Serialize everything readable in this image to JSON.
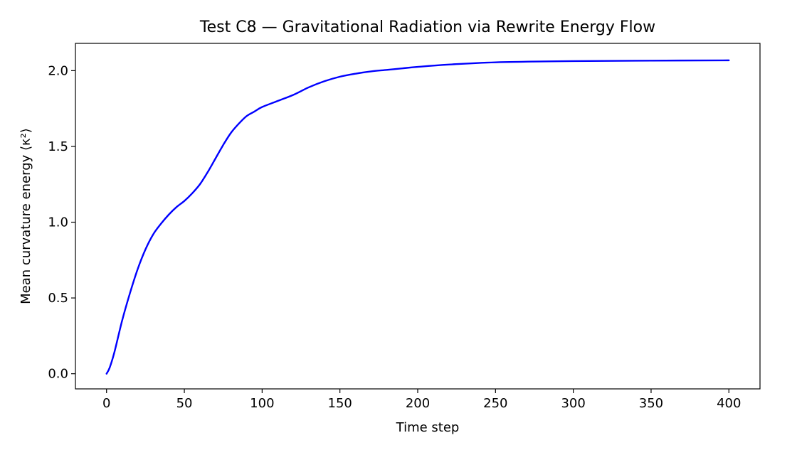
{
  "chart_data": {
    "type": "line",
    "title": "Test C8 — Gravitational Radiation via Rewrite Energy Flow",
    "xlabel": "Time step",
    "ylabel": "Mean curvature energy ⟨κ²⟩",
    "xlim": [
      -20,
      420
    ],
    "ylim": [
      -0.1,
      2.18
    ],
    "xticks": [
      0,
      50,
      100,
      150,
      200,
      250,
      300,
      350,
      400
    ],
    "xtick_labels": [
      "0",
      "50",
      "100",
      "150",
      "200",
      "250",
      "300",
      "350",
      "400"
    ],
    "yticks": [
      0.0,
      0.5,
      1.0,
      1.5,
      2.0
    ],
    "ytick_labels": [
      "0.0",
      "0.5",
      "1.0",
      "1.5",
      "2.0"
    ],
    "grid": false,
    "legend": "none",
    "series": [
      {
        "color": "#0000ff",
        "x": [
          0,
          2,
          5,
          10,
          15,
          20,
          25,
          30,
          35,
          40,
          45,
          50,
          55,
          60,
          65,
          70,
          75,
          80,
          85,
          90,
          95,
          100,
          110,
          120,
          130,
          140,
          150,
          160,
          170,
          180,
          190,
          200,
          220,
          250,
          300,
          350,
          400
        ],
        "y": [
          0.0,
          0.04,
          0.14,
          0.35,
          0.53,
          0.69,
          0.82,
          0.92,
          0.99,
          1.05,
          1.1,
          1.14,
          1.19,
          1.25,
          1.33,
          1.42,
          1.51,
          1.59,
          1.65,
          1.7,
          1.73,
          1.76,
          1.8,
          1.84,
          1.89,
          1.93,
          1.96,
          1.98,
          1.995,
          2.005,
          2.015,
          2.025,
          2.04,
          2.055,
          2.063,
          2.066,
          2.068
        ]
      }
    ]
  }
}
